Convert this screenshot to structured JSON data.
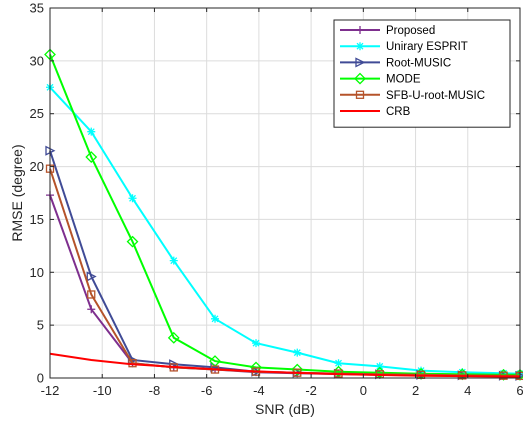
{
  "chart_data": {
    "type": "line",
    "title": "",
    "xlabel": "SNR (dB)",
    "ylabel": "RMSE (degree)",
    "xlim": [
      -12,
      6
    ],
    "ylim": [
      0,
      35
    ],
    "xticks": [
      -12,
      -10,
      -8,
      -6,
      -4,
      -2,
      0,
      2,
      4,
      6
    ],
    "yticks": [
      0,
      5,
      10,
      15,
      20,
      25,
      30,
      35
    ],
    "grid": true,
    "legend_position": "top-right",
    "x": [
      -12,
      -10.42,
      -8.84,
      -7.26,
      -5.68,
      -4.11,
      -2.53,
      -0.95,
      0.63,
      2.21,
      3.79,
      5.37,
      6
    ],
    "series": [
      {
        "name": "Proposed",
        "color": "#7E2F8E",
        "marker": "plus",
        "values": [
          17.3,
          6.5,
          1.4,
          1.0,
          0.8,
          0.55,
          0.45,
          0.38,
          0.3,
          0.25,
          0.22,
          0.2,
          0.2
        ]
      },
      {
        "name": "Unirary ESPRIT",
        "color": "#00FFFF",
        "marker": "asterisk",
        "values": [
          27.5,
          23.3,
          17.0,
          11.1,
          5.6,
          3.3,
          2.4,
          1.4,
          1.1,
          0.7,
          0.55,
          0.45,
          0.4
        ]
      },
      {
        "name": "Root-MUSIC",
        "color": "#404B96",
        "marker": "triangle-right",
        "values": [
          21.5,
          9.6,
          1.7,
          1.3,
          1.0,
          0.6,
          0.5,
          0.4,
          0.35,
          0.3,
          0.25,
          0.22,
          0.2
        ]
      },
      {
        "name": "MODE",
        "color": "#00FF00",
        "marker": "diamond",
        "values": [
          30.6,
          20.9,
          12.9,
          3.8,
          1.6,
          1.0,
          0.8,
          0.6,
          0.5,
          0.4,
          0.35,
          0.3,
          0.3
        ]
      },
      {
        "name": "SFB-U-root-MUSIC",
        "color": "#B5532A",
        "marker": "square",
        "values": [
          19.8,
          7.9,
          1.4,
          1.0,
          0.8,
          0.6,
          0.5,
          0.42,
          0.35,
          0.3,
          0.25,
          0.22,
          0.2
        ]
      },
      {
        "name": "CRB",
        "color": "#FF0000",
        "marker": "none",
        "values": [
          2.3,
          1.7,
          1.3,
          1.05,
          0.82,
          0.62,
          0.48,
          0.37,
          0.28,
          0.22,
          0.18,
          0.14,
          0.13
        ]
      }
    ]
  }
}
